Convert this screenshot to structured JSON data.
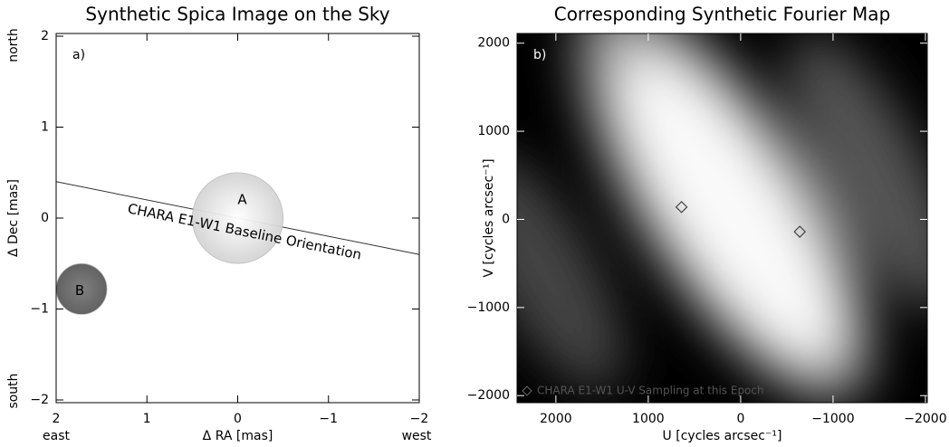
{
  "chart_data": [
    {
      "type": "scatter",
      "title": "Synthetic Spica Image on the Sky",
      "panel_label": "a)",
      "x_label": "Δ RA [mas]",
      "y_label": "Δ Dec [mas]",
      "x_end_labels": [
        "east",
        "west"
      ],
      "y_end_labels": [
        "south",
        "north"
      ],
      "xlim": [
        2,
        -2
      ],
      "ylim": [
        -2,
        2
      ],
      "xticks": [
        2,
        1,
        0,
        {
          "value": -1,
          "label": "−1"
        },
        {
          "value": -2,
          "label": "−2"
        }
      ],
      "yticks": [
        {
          "value": -2,
          "label": "−2"
        },
        {
          "value": -1,
          "label": "−1"
        },
        0,
        1,
        2
      ],
      "series": [
        {
          "name": "A",
          "color": "#e6e6e6",
          "x": [
            0
          ],
          "y": [
            0
          ],
          "radius": [
            0.5
          ]
        },
        {
          "name": "B",
          "color": "#6a6a6a",
          "x": [
            1.72
          ],
          "y": [
            -0.78
          ],
          "radius": [
            0.28
          ]
        }
      ],
      "baseline": {
        "label": "CHARA E1-W1 Baseline Orientation",
        "x": [
          2,
          -2
        ],
        "y": [
          0.4,
          -0.4
        ]
      }
    },
    {
      "type": "heatmap",
      "title": "Corresponding Synthetic Fourier Map",
      "panel_label": "b)",
      "x_label": "U [cycles arcsec⁻¹]",
      "y_label": "V [cycles arcsec⁻¹]",
      "xlim": [
        2420,
        -2020
      ],
      "ylim": [
        -2080,
        2110
      ],
      "xticks": [
        2000,
        1000,
        0,
        {
          "value": -1000,
          "label": "−1000"
        },
        {
          "value": -2000,
          "label": "−2000"
        }
      ],
      "yticks": [
        {
          "value": -2000,
          "label": "−2000"
        },
        {
          "value": -1000,
          "label": "−1000"
        },
        0,
        1000,
        2000
      ],
      "series": [
        {
          "name": "CHARA E1-W1 U-V Sampling at this Epoch",
          "marker": "diamond",
          "color": "#444444",
          "x": [
            640,
            -640
          ],
          "y": [
            140,
            -140
          ]
        }
      ]
    }
  ]
}
